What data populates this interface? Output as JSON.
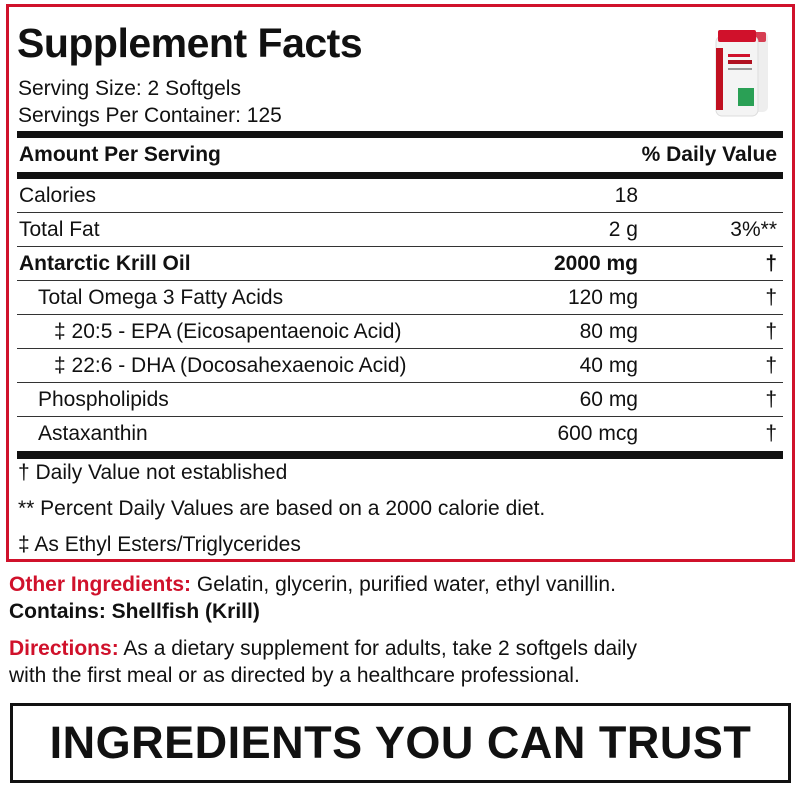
{
  "title": "Supplement Facts",
  "serving_size": "Serving Size: 2 Softgels",
  "servings_per_container": "Servings Per Container: 125",
  "product_image": {
    "brand_text": "KRILL OIL",
    "count": "250"
  },
  "table": {
    "header_left": "Amount Per Serving",
    "header_right": "% Daily Value",
    "rows": [
      {
        "label": "Calories",
        "amount": "18",
        "dv": ""
      },
      {
        "label": "Total Fat",
        "amount": "2 g",
        "dv": "3%**"
      },
      {
        "label": "Antarctic Krill Oil",
        "amount": "2000 mg",
        "dv": "†"
      },
      {
        "label": "Total Omega 3 Fatty Acids",
        "amount": "120 mg",
        "dv": "†"
      },
      {
        "label": "‡ 20:5 - EPA (Eicosapentaenoic Acid)",
        "amount": "80 mg",
        "dv": "†"
      },
      {
        "label": "‡ 22:6 - DHA (Docosahexaenoic Acid)",
        "amount": "40 mg",
        "dv": "†"
      },
      {
        "label": "Phospholipids",
        "amount": "60 mg",
        "dv": "†"
      },
      {
        "label": "Astaxanthin",
        "amount": "600 mcg",
        "dv": "†"
      }
    ]
  },
  "footnotes": [
    "† Daily Value not established",
    "** Percent Daily Values are based on a 2000 calorie diet.",
    "‡ As Ethyl Esters/Triglycerides"
  ],
  "other_ingredients": {
    "label": "Other Ingredients:",
    "text": " Gelatin, glycerin, purified water, ethyl vanillin."
  },
  "contains": "Contains: Shellfish (Krill)",
  "directions": {
    "label": "Directions:",
    "line1": " As a dietary supplement for adults, take 2 softgels daily",
    "line2": "with the first meal or as directed by a healthcare professional."
  },
  "banner": "INGREDIENTS YOU CAN TRUST",
  "colors": {
    "accent": "#d0112b",
    "text": "#111111"
  }
}
